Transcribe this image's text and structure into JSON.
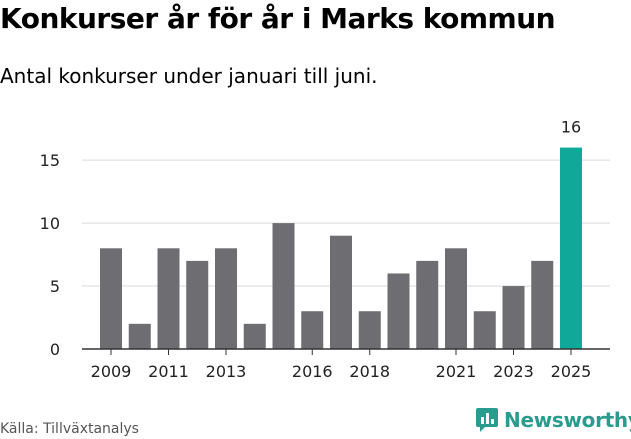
{
  "header": {
    "title": "Konkurser år för år i Marks kommun",
    "subtitle": "Antal konkurser under januari till juni."
  },
  "footer": {
    "source": "Källa: Tillväxtanalys",
    "brand": "Newsworthy"
  },
  "colors": {
    "bar": "#6e6d72",
    "highlight": "#0fa899",
    "brand": "#2a9c8e",
    "grid": "#d9d9d9"
  },
  "chart_data": {
    "type": "bar",
    "x": [
      2009,
      2010,
      2011,
      2012,
      2013,
      2014,
      2015,
      2016,
      2017,
      2018,
      2019,
      2020,
      2021,
      2022,
      2023,
      2024,
      2025
    ],
    "values": [
      8,
      2,
      8,
      7,
      8,
      2,
      10,
      3,
      9,
      3,
      6,
      7,
      8,
      3,
      5,
      7,
      16
    ],
    "x_tick_labels": [
      "2009",
      "2011",
      "2013",
      "2016",
      "2018",
      "2021",
      "2023",
      "2025"
    ],
    "y_ticks": [
      0,
      5,
      10,
      15
    ],
    "ylim": [
      0,
      17
    ],
    "highlight_year": 2025,
    "highlight_label": "16",
    "grid": true,
    "legend": "none"
  }
}
